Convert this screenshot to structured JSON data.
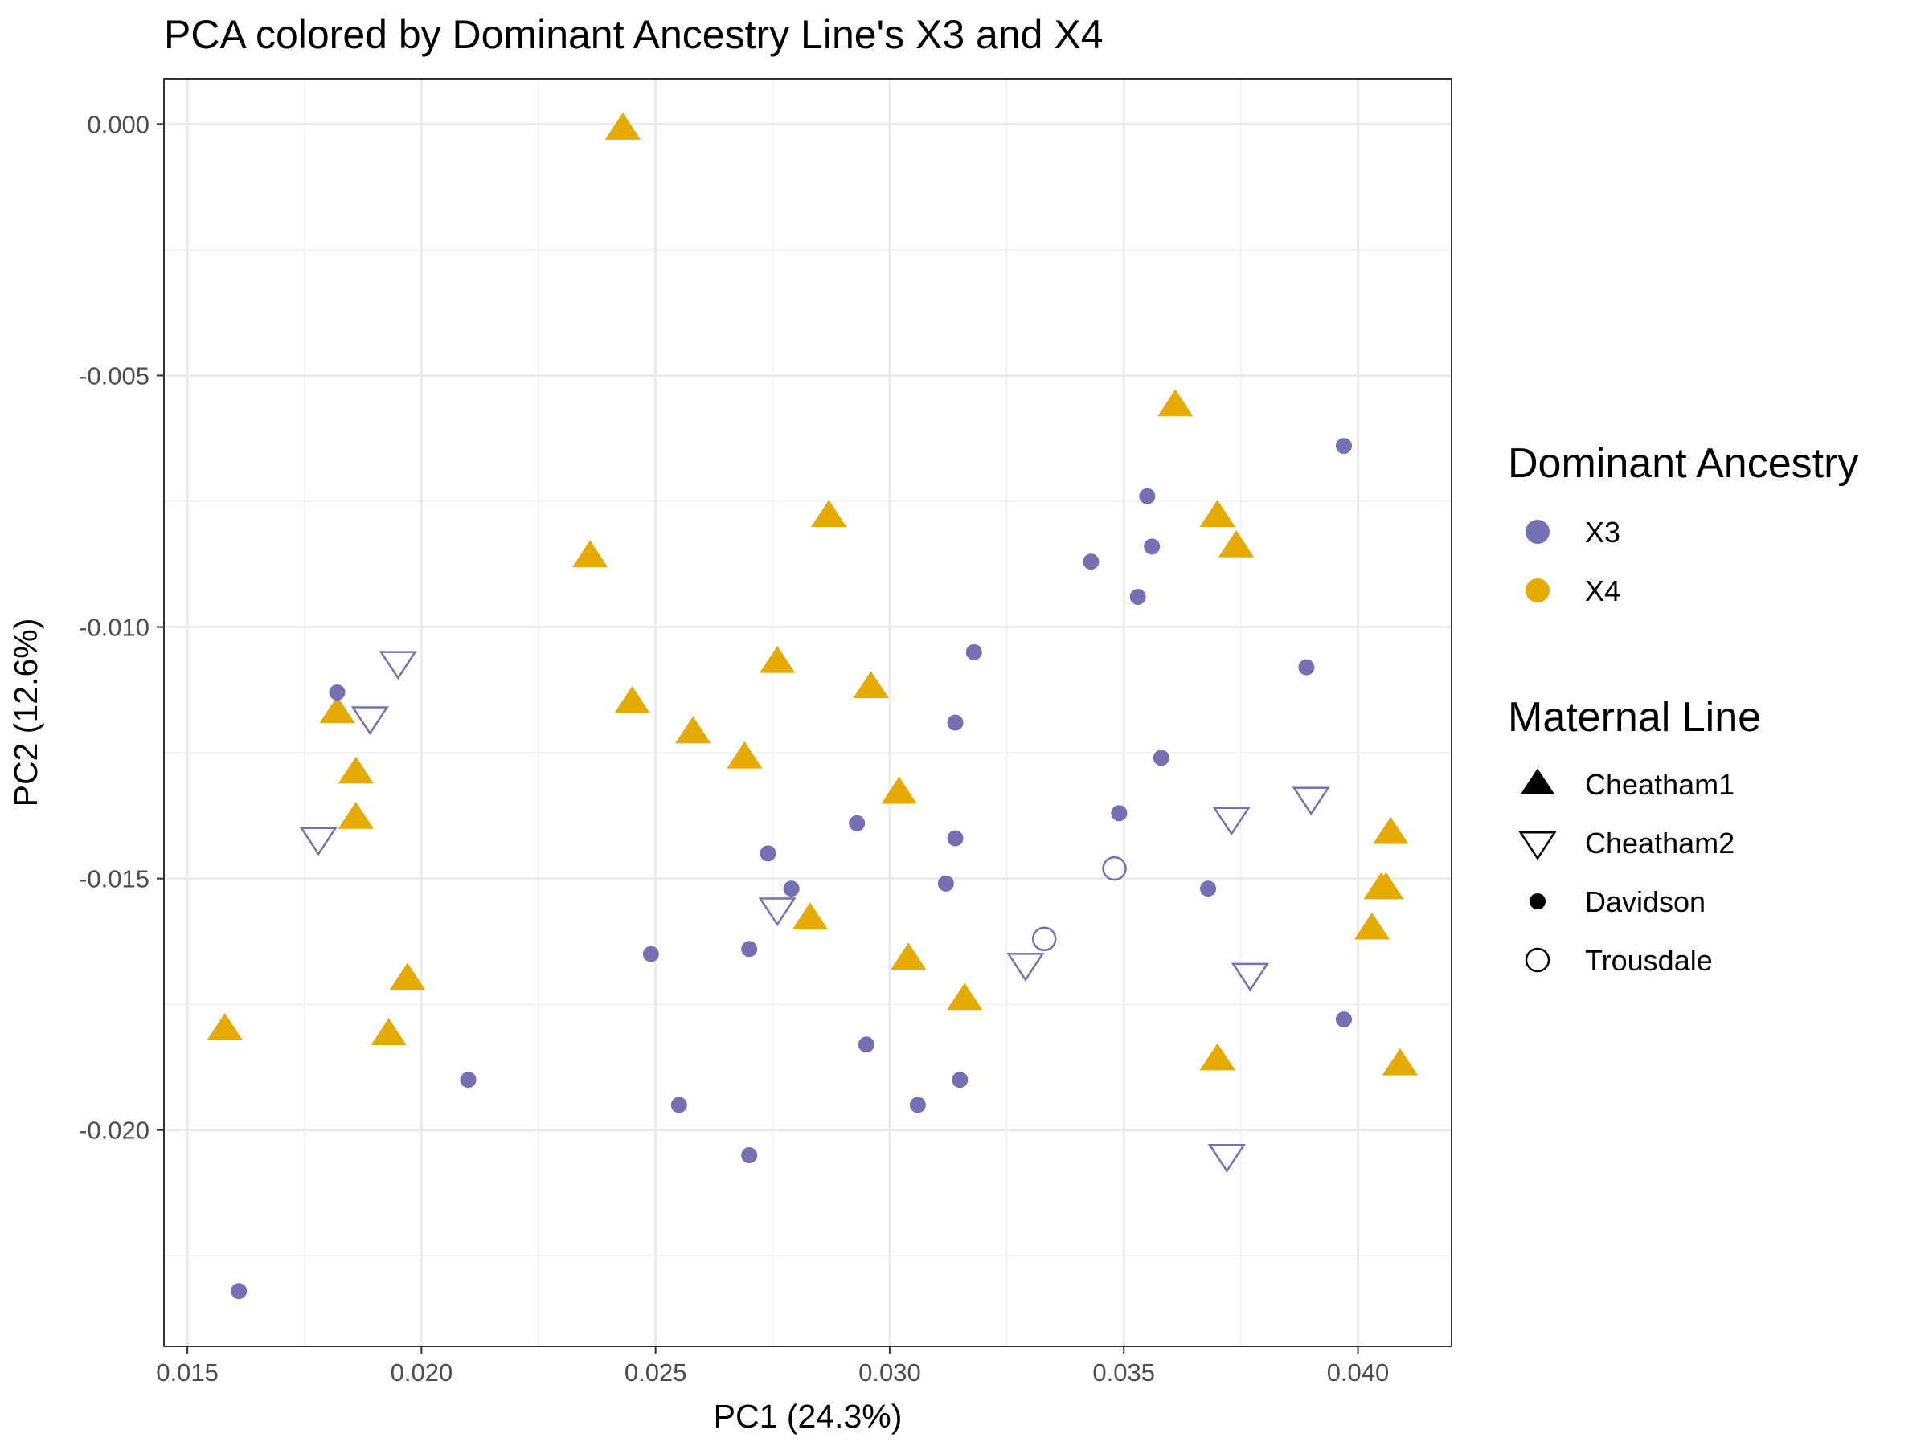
{
  "chart_data": {
    "type": "scatter",
    "title": "PCA colored by Dominant Ancestry Line's X3 and X4",
    "xlabel": "PC1 (24.3%)",
    "ylabel": "PC2 (12.6%)",
    "xlim": [
      0.0145,
      0.042
    ],
    "ylim": [
      -0.0243,
      0.0009
    ],
    "x_ticks": [
      0.015,
      0.02,
      0.025,
      0.03,
      0.035,
      0.04
    ],
    "x_tick_labels": [
      "0.015",
      "0.020",
      "0.025",
      "0.030",
      "0.035",
      "0.040"
    ],
    "y_ticks": [
      0.0,
      -0.005,
      -0.01,
      -0.015,
      -0.02
    ],
    "y_tick_labels": [
      "0.000",
      "-0.005",
      "-0.010",
      "-0.015",
      "-0.020"
    ],
    "grid": true,
    "legend_position": "right",
    "color_legend": {
      "title": "Dominant Ancestry",
      "entries": [
        {
          "label": "X3",
          "color": "#7570b3"
        },
        {
          "label": "X4",
          "color": "#e6ab02"
        }
      ]
    },
    "shape_legend": {
      "title": "Maternal Line",
      "entries": [
        {
          "label": "Cheatham1",
          "shape": "triangle-up-filled"
        },
        {
          "label": "Cheatham2",
          "shape": "triangle-down-open"
        },
        {
          "label": "Davidson",
          "shape": "circle-filled"
        },
        {
          "label": "Trousdale",
          "shape": "circle-open"
        }
      ]
    },
    "points": [
      {
        "x": 0.0243,
        "y": -0.0001,
        "ancestry": "X4",
        "line": "Cheatham1"
      },
      {
        "x": 0.0361,
        "y": -0.0056,
        "ancestry": "X4",
        "line": "Cheatham1"
      },
      {
        "x": 0.037,
        "y": -0.0078,
        "ancestry": "X4",
        "line": "Cheatham1"
      },
      {
        "x": 0.0374,
        "y": -0.0084,
        "ancestry": "X4",
        "line": "Cheatham1"
      },
      {
        "x": 0.0287,
        "y": -0.0078,
        "ancestry": "X4",
        "line": "Cheatham1"
      },
      {
        "x": 0.0236,
        "y": -0.0086,
        "ancestry": "X4",
        "line": "Cheatham1"
      },
      {
        "x": 0.0276,
        "y": -0.0107,
        "ancestry": "X4",
        "line": "Cheatham1"
      },
      {
        "x": 0.0296,
        "y": -0.0112,
        "ancestry": "X4",
        "line": "Cheatham1"
      },
      {
        "x": 0.0245,
        "y": -0.0115,
        "ancestry": "X4",
        "line": "Cheatham1"
      },
      {
        "x": 0.0258,
        "y": -0.0121,
        "ancestry": "X4",
        "line": "Cheatham1"
      },
      {
        "x": 0.0269,
        "y": -0.0126,
        "ancestry": "X4",
        "line": "Cheatham1"
      },
      {
        "x": 0.0182,
        "y": -0.0117,
        "ancestry": "X4",
        "line": "Cheatham1"
      },
      {
        "x": 0.0186,
        "y": -0.0129,
        "ancestry": "X4",
        "line": "Cheatham1"
      },
      {
        "x": 0.0186,
        "y": -0.0138,
        "ancestry": "X4",
        "line": "Cheatham1"
      },
      {
        "x": 0.0302,
        "y": -0.0133,
        "ancestry": "X4",
        "line": "Cheatham1"
      },
      {
        "x": 0.0283,
        "y": -0.0158,
        "ancestry": "X4",
        "line": "Cheatham1"
      },
      {
        "x": 0.0304,
        "y": -0.0166,
        "ancestry": "X4",
        "line": "Cheatham1"
      },
      {
        "x": 0.0316,
        "y": -0.0174,
        "ancestry": "X4",
        "line": "Cheatham1"
      },
      {
        "x": 0.0197,
        "y": -0.017,
        "ancestry": "X4",
        "line": "Cheatham1"
      },
      {
        "x": 0.0158,
        "y": -0.018,
        "ancestry": "X4",
        "line": "Cheatham1"
      },
      {
        "x": 0.0193,
        "y": -0.0181,
        "ancestry": "X4",
        "line": "Cheatham1"
      },
      {
        "x": 0.037,
        "y": -0.0186,
        "ancestry": "X4",
        "line": "Cheatham1"
      },
      {
        "x": 0.0407,
        "y": -0.0141,
        "ancestry": "X4",
        "line": "Cheatham1"
      },
      {
        "x": 0.0405,
        "y": -0.0152,
        "ancestry": "X4",
        "line": "Cheatham1"
      },
      {
        "x": 0.0406,
        "y": -0.0152,
        "ancestry": "X4",
        "line": "Cheatham1"
      },
      {
        "x": 0.0403,
        "y": -0.016,
        "ancestry": "X4",
        "line": "Cheatham1"
      },
      {
        "x": 0.0409,
        "y": -0.0187,
        "ancestry": "X4",
        "line": "Cheatham1"
      },
      {
        "x": 0.0397,
        "y": -0.0064,
        "ancestry": "X3",
        "line": "Davidson"
      },
      {
        "x": 0.0355,
        "y": -0.0074,
        "ancestry": "X3",
        "line": "Davidson"
      },
      {
        "x": 0.0356,
        "y": -0.0084,
        "ancestry": "X3",
        "line": "Davidson"
      },
      {
        "x": 0.0343,
        "y": -0.0087,
        "ancestry": "X3",
        "line": "Davidson"
      },
      {
        "x": 0.0353,
        "y": -0.0094,
        "ancestry": "X3",
        "line": "Davidson"
      },
      {
        "x": 0.0318,
        "y": -0.0105,
        "ancestry": "X3",
        "line": "Davidson"
      },
      {
        "x": 0.0389,
        "y": -0.0108,
        "ancestry": "X3",
        "line": "Davidson"
      },
      {
        "x": 0.0314,
        "y": -0.0119,
        "ancestry": "X3",
        "line": "Davidson"
      },
      {
        "x": 0.0358,
        "y": -0.0126,
        "ancestry": "X3",
        "line": "Davidson"
      },
      {
        "x": 0.0182,
        "y": -0.0113,
        "ancestry": "X3",
        "line": "Davidson"
      },
      {
        "x": 0.0293,
        "y": -0.0139,
        "ancestry": "X3",
        "line": "Davidson"
      },
      {
        "x": 0.0349,
        "y": -0.0137,
        "ancestry": "X3",
        "line": "Davidson"
      },
      {
        "x": 0.0314,
        "y": -0.0142,
        "ancestry": "X3",
        "line": "Davidson"
      },
      {
        "x": 0.0274,
        "y": -0.0145,
        "ancestry": "X3",
        "line": "Davidson"
      },
      {
        "x": 0.0279,
        "y": -0.0152,
        "ancestry": "X3",
        "line": "Davidson"
      },
      {
        "x": 0.0312,
        "y": -0.0151,
        "ancestry": "X3",
        "line": "Davidson"
      },
      {
        "x": 0.0368,
        "y": -0.0152,
        "ancestry": "X3",
        "line": "Davidson"
      },
      {
        "x": 0.0249,
        "y": -0.0165,
        "ancestry": "X3",
        "line": "Davidson"
      },
      {
        "x": 0.027,
        "y": -0.0164,
        "ancestry": "X3",
        "line": "Davidson"
      },
      {
        "x": 0.0397,
        "y": -0.0178,
        "ancestry": "X3",
        "line": "Davidson"
      },
      {
        "x": 0.0295,
        "y": -0.0183,
        "ancestry": "X3",
        "line": "Davidson"
      },
      {
        "x": 0.021,
        "y": -0.019,
        "ancestry": "X3",
        "line": "Davidson"
      },
      {
        "x": 0.0315,
        "y": -0.019,
        "ancestry": "X3",
        "line": "Davidson"
      },
      {
        "x": 0.0255,
        "y": -0.0195,
        "ancestry": "X3",
        "line": "Davidson"
      },
      {
        "x": 0.0306,
        "y": -0.0195,
        "ancestry": "X3",
        "line": "Davidson"
      },
      {
        "x": 0.027,
        "y": -0.0205,
        "ancestry": "X3",
        "line": "Davidson"
      },
      {
        "x": 0.0161,
        "y": -0.0232,
        "ancestry": "X3",
        "line": "Davidson"
      },
      {
        "x": 0.0195,
        "y": -0.0107,
        "ancestry": "X3",
        "line": "Cheatham2"
      },
      {
        "x": 0.0189,
        "y": -0.0118,
        "ancestry": "X3",
        "line": "Cheatham2"
      },
      {
        "x": 0.0178,
        "y": -0.0142,
        "ancestry": "X3",
        "line": "Cheatham2"
      },
      {
        "x": 0.0276,
        "y": -0.0156,
        "ancestry": "X3",
        "line": "Cheatham2"
      },
      {
        "x": 0.0329,
        "y": -0.0167,
        "ancestry": "X3",
        "line": "Cheatham2"
      },
      {
        "x": 0.0373,
        "y": -0.0138,
        "ancestry": "X3",
        "line": "Cheatham2"
      },
      {
        "x": 0.039,
        "y": -0.0134,
        "ancestry": "X3",
        "line": "Cheatham2"
      },
      {
        "x": 0.0377,
        "y": -0.0169,
        "ancestry": "X3",
        "line": "Cheatham2"
      },
      {
        "x": 0.0372,
        "y": -0.0205,
        "ancestry": "X3",
        "line": "Cheatham2"
      },
      {
        "x": 0.0333,
        "y": -0.0162,
        "ancestry": "X3",
        "line": "Trousdale"
      },
      {
        "x": 0.0348,
        "y": -0.0148,
        "ancestry": "X3",
        "line": "Trousdale"
      }
    ]
  }
}
